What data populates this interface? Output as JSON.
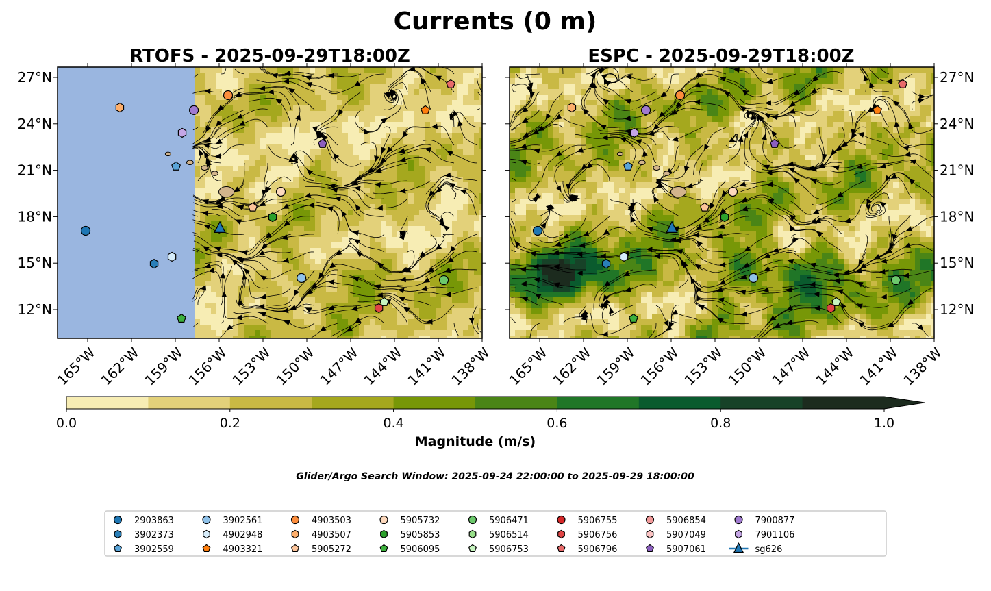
{
  "chart_data": {
    "type": "map",
    "title": "Currents (0 m)",
    "panels": [
      {
        "title": "RTOFS - 2025-09-29T18:00Z",
        "model": "RTOFS"
      },
      {
        "title": "ESPC - 2025-09-29T18:00Z",
        "model": "ESPC"
      }
    ],
    "lon_range": [
      -167.06,
      -138
    ],
    "lat_range": [
      10.14,
      27.66
    ],
    "lon_ticks": [
      "165°W",
      "162°W",
      "159°W",
      "156°W",
      "153°W",
      "150°W",
      "147°W",
      "144°W",
      "141°W",
      "138°W"
    ],
    "lon_tick_values": [
      -165,
      -162,
      -159,
      -156,
      -153,
      -150,
      -147,
      -144,
      -141,
      -138
    ],
    "lat_ticks": [
      "12°N",
      "15°N",
      "18°N",
      "21°N",
      "24°N",
      "27°N"
    ],
    "lat_tick_values": [
      12,
      15,
      18,
      21,
      24,
      27
    ],
    "colorbar": {
      "label": "Magnitude (m/s)",
      "ticks": [
        "0.0",
        "0.2",
        "0.4",
        "0.6",
        "0.8",
        "1.0"
      ],
      "levels": [
        0,
        0.1,
        0.2,
        0.3,
        0.4,
        0.5,
        0.6,
        0.7,
        0.8,
        0.9,
        1.0
      ],
      "colors": [
        "#f7edb4",
        "#e3d17a",
        "#c9b944",
        "#a5a81e",
        "#779707",
        "#4a8516",
        "#207627",
        "#0a5b2e",
        "#174228",
        "#1c2b1e"
      ],
      "extend": "max"
    },
    "search_window": "Glider/Argo Search Window: 2025-09-24 22:00:00 to 2025-09-29 18:00:00",
    "ocean_color": "#9ab6e0",
    "land_color": "#d2b48c",
    "markers": [
      {
        "id": "2903863",
        "shape": "circle",
        "color": "#1f77b4",
        "lon": -165.14,
        "lat": 17.09
      },
      {
        "id": "3902373",
        "shape": "hexagon",
        "color": "#2a7fb8",
        "lon": -160.45,
        "lat": 14.96
      },
      {
        "id": "3902559",
        "shape": "pentagon",
        "color": "#5aa4d8",
        "lon": -158.95,
        "lat": 21.25
      },
      {
        "id": "3902561",
        "shape": "circle",
        "color": "#8fc2ea",
        "lon": -150.37,
        "lat": 14.04
      },
      {
        "id": "4902948",
        "shape": "hexagon",
        "color": "#d6ecfa",
        "lon": -159.23,
        "lat": 15.41
      },
      {
        "id": "4903321",
        "shape": "pentagon",
        "color": "#ff7f0e",
        "lon": -141.89,
        "lat": 24.88
      },
      {
        "id": "4903503",
        "shape": "circle",
        "color": "#fd8d3c",
        "lon": -155.39,
        "lat": 25.85
      },
      {
        "id": "4903507",
        "shape": "hexagon",
        "color": "#fdae6b",
        "lon": -162.8,
        "lat": 25.05
      },
      {
        "id": "5905272",
        "shape": "pentagon",
        "color": "#fdc49a",
        "lon": -153.7,
        "lat": 18.6
      },
      {
        "id": "5905732",
        "shape": "circle",
        "color": "#fdd9bd",
        "lon": -151.78,
        "lat": 19.61
      },
      {
        "id": "5905853",
        "shape": "hexagon",
        "color": "#2ca02c",
        "lon": -152.34,
        "lat": 17.97
      },
      {
        "id": "5906095",
        "shape": "pentagon",
        "color": "#3cb03c",
        "lon": -158.58,
        "lat": 11.42
      },
      {
        "id": "5906471",
        "shape": "circle",
        "color": "#6cc96c",
        "lon": -140.62,
        "lat": 13.9
      },
      {
        "id": "5906514",
        "shape": "hexagon",
        "color": "#98df8a",
        "lon": null,
        "lat": null
      },
      {
        "id": "5906753",
        "shape": "pentagon",
        "color": "#c7f5c0",
        "lon": -144.7,
        "lat": 12.49
      },
      {
        "id": "5906755",
        "shape": "circle",
        "color": "#d62728",
        "lon": null,
        "lat": null
      },
      {
        "id": "5906756",
        "shape": "hexagon",
        "color": "#e04545",
        "lon": -145.07,
        "lat": 12.09
      },
      {
        "id": "5906796",
        "shape": "pentagon",
        "color": "#e86a6a",
        "lon": -140.15,
        "lat": 26.56
      },
      {
        "id": "5906854",
        "shape": "circle",
        "color": "#f29a9a",
        "lon": null,
        "lat": null
      },
      {
        "id": "5907049",
        "shape": "hexagon",
        "color": "#fcc3c3",
        "lon": null,
        "lat": null
      },
      {
        "id": "5907061",
        "shape": "pentagon",
        "color": "#8c5fbf",
        "lon": -148.92,
        "lat": 22.71
      },
      {
        "id": "7900877",
        "shape": "circle",
        "color": "#a07ad0",
        "lon": -157.73,
        "lat": 24.88
      },
      {
        "id": "7901106",
        "shape": "hexagon",
        "color": "#c5a6e6",
        "lon": -158.53,
        "lat": 23.42
      },
      {
        "id": "sg626",
        "shape": "triangle",
        "color": "#1f77b4",
        "lon": -155.95,
        "lat": 17.27
      }
    ]
  }
}
